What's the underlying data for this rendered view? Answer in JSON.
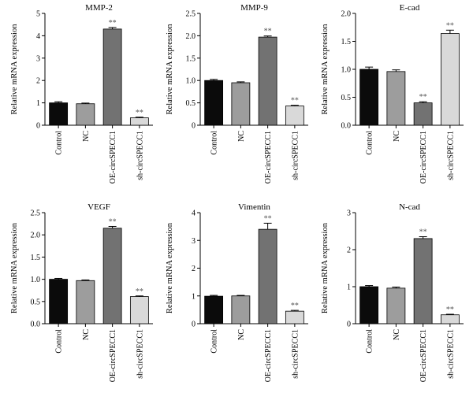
{
  "colors": {
    "Control": "#0b0b0b",
    "NC": "#9d9d9d",
    "OE-circSPECC1": "#727272",
    "sh-circSPECC1": "#d9d9d9"
  },
  "chart_data": [
    {
      "type": "bar",
      "title": "MMP-2",
      "ylabel": "Relative mRNA expression",
      "ylim": [
        0,
        5
      ],
      "yticks": [
        "0",
        "1",
        "2",
        "3",
        "4",
        "5"
      ],
      "categories": [
        "Control",
        "NC",
        "OE-circSPECC1",
        "sh-circSPECC1"
      ],
      "values": [
        1.0,
        0.96,
        4.3,
        0.33
      ],
      "errors": [
        0.05,
        0.03,
        0.07,
        0.03
      ],
      "annotations": [
        "",
        "",
        "**",
        "**"
      ]
    },
    {
      "type": "bar",
      "title": "MMP-9",
      "ylabel": "Relative mRNA expression",
      "ylim": [
        0,
        2.5
      ],
      "yticks": [
        "0",
        "0.5",
        "1.0",
        "1.5",
        "2.0",
        "2.5"
      ],
      "categories": [
        "Control",
        "NC",
        "OE-circSPECC1",
        "sh-circSPECC1"
      ],
      "values": [
        1.0,
        0.95,
        1.97,
        0.43
      ],
      "errors": [
        0.025,
        0.02,
        0.025,
        0.015
      ],
      "annotations": [
        "",
        "",
        "**",
        "**"
      ]
    },
    {
      "type": "bar",
      "title": "E-cad",
      "ylabel": "Relative mRNA expression",
      "ylim": [
        0,
        2.0
      ],
      "yticks": [
        "0.0",
        "0.5",
        "1.0",
        "1.5",
        "2.0"
      ],
      "categories": [
        "Control",
        "NC",
        "OE-circSPECC1",
        "sh-circSPECC1"
      ],
      "values": [
        1.0,
        0.96,
        0.4,
        1.64
      ],
      "errors": [
        0.04,
        0.03,
        0.02,
        0.06
      ],
      "annotations": [
        "",
        "",
        "**",
        "**"
      ]
    },
    {
      "type": "bar",
      "title": "VEGF",
      "ylabel": "Relative mRNA expression",
      "ylim": [
        0,
        2.5
      ],
      "yticks": [
        "0.0",
        "0.5",
        "1.0",
        "1.5",
        "2.0",
        "2.5"
      ],
      "categories": [
        "Control",
        "NC",
        "OE-circSPECC1",
        "sh-circSPECC1"
      ],
      "values": [
        1.0,
        0.97,
        2.15,
        0.61
      ],
      "errors": [
        0.02,
        0.015,
        0.04,
        0.015
      ],
      "annotations": [
        "",
        "",
        "**",
        "**"
      ]
    },
    {
      "type": "bar",
      "title": "Vimentin",
      "ylabel": "Relative mRNA expression",
      "ylim": [
        0,
        4
      ],
      "yticks": [
        "0",
        "1",
        "2",
        "3",
        "4"
      ],
      "categories": [
        "Control",
        "NC",
        "OE-circSPECC1",
        "sh-circSPECC1"
      ],
      "values": [
        0.99,
        1.0,
        3.4,
        0.45
      ],
      "errors": [
        0.03,
        0.02,
        0.22,
        0.03
      ],
      "annotations": [
        "",
        "",
        "**",
        "**"
      ]
    },
    {
      "type": "bar",
      "title": "N-cad",
      "ylabel": "Relative mRNA expression",
      "ylim": [
        0,
        3
      ],
      "yticks": [
        "0",
        "1",
        "2",
        "3"
      ],
      "categories": [
        "Control",
        "NC",
        "OE-circSPECC1",
        "sh-circSPECC1"
      ],
      "values": [
        1.0,
        0.96,
        2.3,
        0.24
      ],
      "errors": [
        0.03,
        0.03,
        0.05,
        0.015
      ],
      "annotations": [
        "",
        "",
        "**",
        "**"
      ]
    }
  ]
}
